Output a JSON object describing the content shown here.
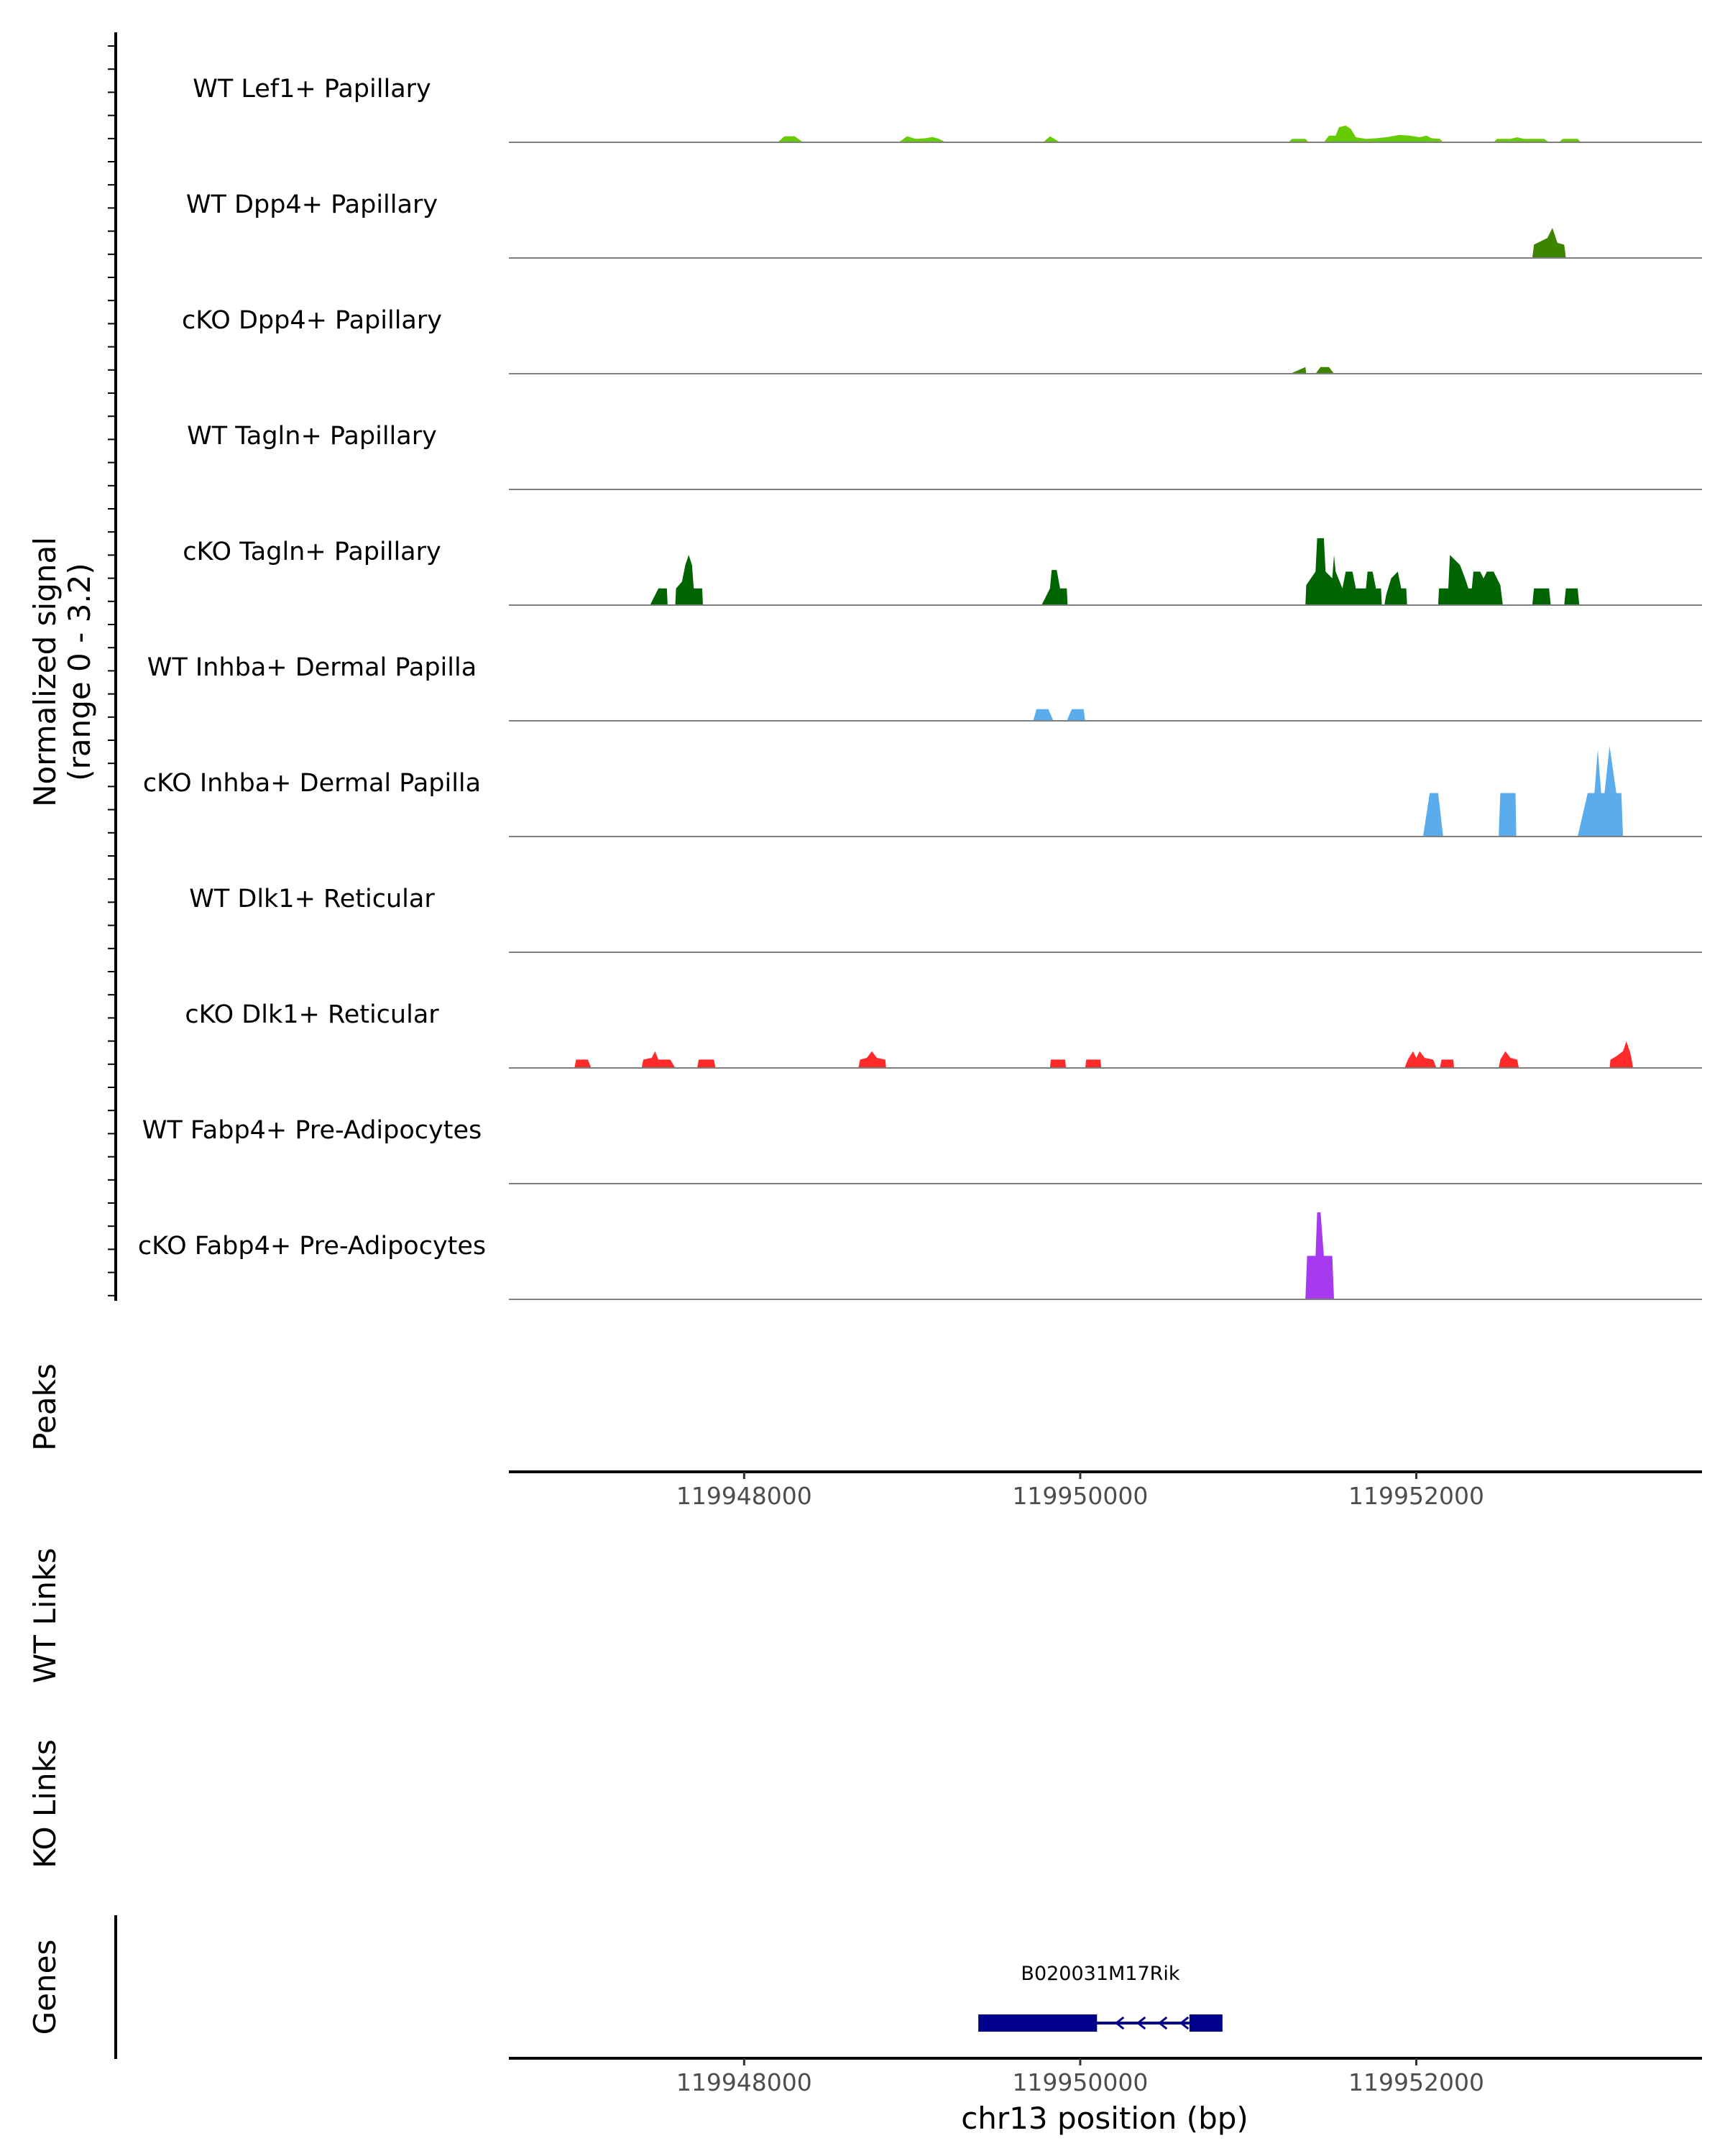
{
  "chart_data": {
    "type": "area",
    "title": "",
    "signal_axis_label": "Normalized signal",
    "signal_range_label": "(range 0 - 3.2)",
    "ylim": [
      0,
      3.2
    ],
    "xlim": [
      119946600,
      119953700
    ],
    "xlabel": "chr13 position (bp)",
    "x_ticks": [
      119948000,
      119950000,
      119952000
    ],
    "x_tick_labels": [
      "119948000",
      "119950000",
      "119952000"
    ],
    "tracks": [
      {
        "name": "WT Lef1+ Papillary",
        "color": "#66cc00",
        "points": [
          [
            119948200,
            0
          ],
          [
            119948240,
            0.18
          ],
          [
            119948300,
            0.18
          ],
          [
            119948350,
            0
          ],
          [
            119948920,
            0
          ],
          [
            119948970,
            0.18
          ],
          [
            119949020,
            0.1
          ],
          [
            119949080,
            0.12
          ],
          [
            119949120,
            0.16
          ],
          [
            119949160,
            0.1
          ],
          [
            119949200,
            0
          ],
          [
            119949780,
            0
          ],
          [
            119949820,
            0.18
          ],
          [
            119949880,
            0
          ],
          [
            119951240,
            0
          ],
          [
            119951260,
            0.1
          ],
          [
            119951340,
            0.1
          ],
          [
            119951360,
            0
          ],
          [
            119951450,
            0
          ],
          [
            119951480,
            0.2
          ],
          [
            119951520,
            0.2
          ],
          [
            119951540,
            0.45
          ],
          [
            119951580,
            0.5
          ],
          [
            119951610,
            0.4
          ],
          [
            119951640,
            0.15
          ],
          [
            119951700,
            0.1
          ],
          [
            119951760,
            0.12
          ],
          [
            119951820,
            0.15
          ],
          [
            119951900,
            0.22
          ],
          [
            119951960,
            0.2
          ],
          [
            119952020,
            0.15
          ],
          [
            119952060,
            0.2
          ],
          [
            119952090,
            0.12
          ],
          [
            119952140,
            0.1
          ],
          [
            119952160,
            0
          ],
          [
            119952460,
            0
          ],
          [
            119952480,
            0.1
          ],
          [
            119952560,
            0.1
          ],
          [
            119952600,
            0.15
          ],
          [
            119952640,
            0.1
          ],
          [
            119952660,
            0.1
          ],
          [
            119952700,
            0.1
          ],
          [
            119952760,
            0.1
          ],
          [
            119952790,
            0
          ],
          [
            119952850,
            0
          ],
          [
            119952870,
            0.1
          ],
          [
            119952960,
            0.1
          ],
          [
            119952980,
            0
          ]
        ]
      },
      {
        "name": "WT Dpp4+ Papillary",
        "color": "#3d8500",
        "points": [
          [
            119952690,
            0
          ],
          [
            119952700,
            0.4
          ],
          [
            119952780,
            0.6
          ],
          [
            119952810,
            0.9
          ],
          [
            119952840,
            0.45
          ],
          [
            119952880,
            0.4
          ],
          [
            119952890,
            0
          ]
        ]
      },
      {
        "name": "cKO Dpp4+ Papillary",
        "color": "#3d8500",
        "points": [
          [
            119951250,
            0
          ],
          [
            119951340,
            0.2
          ],
          [
            119951345,
            0
          ],
          [
            119951400,
            0
          ],
          [
            119951430,
            0.2
          ],
          [
            119951480,
            0.2
          ],
          [
            119951510,
            0
          ]
        ]
      },
      {
        "name": "WT Tagln+ Papillary",
        "color": "#006400",
        "points": []
      },
      {
        "name": "cKO Tagln+ Papillary",
        "color": "#006400",
        "points": [
          [
            119947440,
            0
          ],
          [
            119947490,
            0.5
          ],
          [
            119947540,
            0.5
          ],
          [
            119947545,
            0
          ],
          [
            119947590,
            0
          ],
          [
            119947595,
            0.5
          ],
          [
            119947630,
            0.7
          ],
          [
            119947650,
            1.2
          ],
          [
            119947670,
            1.5
          ],
          [
            119947690,
            1.2
          ],
          [
            119947700,
            0.5
          ],
          [
            119947750,
            0.5
          ],
          [
            119947755,
            0
          ],
          [
            119949770,
            0
          ],
          [
            119949820,
            0.5
          ],
          [
            119949830,
            1.05
          ],
          [
            119949860,
            1.05
          ],
          [
            119949880,
            0.5
          ],
          [
            119949920,
            0.5
          ],
          [
            119949925,
            0
          ],
          [
            119951340,
            0
          ],
          [
            119951345,
            0.6
          ],
          [
            119951400,
            1.0
          ],
          [
            119951410,
            2.0
          ],
          [
            119951450,
            2.0
          ],
          [
            119951460,
            1.0
          ],
          [
            119951500,
            0.8
          ],
          [
            119951510,
            1.5
          ],
          [
            119951520,
            1.0
          ],
          [
            119951560,
            0.5
          ],
          [
            119951580,
            1.0
          ],
          [
            119951620,
            1.0
          ],
          [
            119951640,
            0.5
          ],
          [
            119951700,
            0.5
          ],
          [
            119951710,
            1.0
          ],
          [
            119951740,
            1.0
          ],
          [
            119951760,
            0.5
          ],
          [
            119951790,
            0.5
          ],
          [
            119951795,
            0
          ],
          [
            119951810,
            0
          ],
          [
            119951820,
            0.3
          ],
          [
            119951850,
            0.8
          ],
          [
            119951890,
            1.0
          ],
          [
            119951910,
            0.5
          ],
          [
            119951940,
            0.5
          ],
          [
            119951945,
            0
          ],
          [
            119952130,
            0
          ],
          [
            119952135,
            0.5
          ],
          [
            119952190,
            0.5
          ],
          [
            119952200,
            1.5
          ],
          [
            119952260,
            1.2
          ],
          [
            119952290,
            0.8
          ],
          [
            119952310,
            0.5
          ],
          [
            119952330,
            0.5
          ],
          [
            119952340,
            1.0
          ],
          [
            119952380,
            1.0
          ],
          [
            119952400,
            0.8
          ],
          [
            119952420,
            1.0
          ],
          [
            119952460,
            1.0
          ],
          [
            119952500,
            0.6
          ],
          [
            119952515,
            0
          ],
          [
            119952690,
            0
          ],
          [
            119952700,
            0.5
          ],
          [
            119952790,
            0.5
          ],
          [
            119952800,
            0
          ],
          [
            119952880,
            0
          ],
          [
            119952890,
            0.5
          ],
          [
            119952960,
            0.5
          ],
          [
            119952970,
            0
          ]
        ]
      },
      {
        "name": "WT Inhba+ Dermal Papilla",
        "color": "#5aacec",
        "points": [
          [
            119949720,
            0
          ],
          [
            119949740,
            0.35
          ],
          [
            119949810,
            0.35
          ],
          [
            119949840,
            0
          ],
          [
            119949920,
            0
          ],
          [
            119949950,
            0.35
          ],
          [
            119950020,
            0.35
          ],
          [
            119950030,
            0
          ]
        ]
      },
      {
        "name": "cKO Inhba+ Dermal Papilla",
        "color": "#5aacec",
        "points": [
          [
            119952040,
            0
          ],
          [
            119952080,
            1.3
          ],
          [
            119952130,
            1.3
          ],
          [
            119952160,
            0
          ],
          [
            119952490,
            0
          ],
          [
            119952500,
            1.3
          ],
          [
            119952590,
            1.3
          ],
          [
            119952595,
            0
          ],
          [
            119952960,
            0
          ],
          [
            119953020,
            1.3
          ],
          [
            119953060,
            1.3
          ],
          [
            119953080,
            2.6
          ],
          [
            119953100,
            1.3
          ],
          [
            119953120,
            1.3
          ],
          [
            119953150,
            2.7
          ],
          [
            119953190,
            1.3
          ],
          [
            119953220,
            1.3
          ],
          [
            119953230,
            0
          ]
        ]
      },
      {
        "name": "WT Dlk1+ Reticular",
        "color": "#ff2a2a",
        "points": []
      },
      {
        "name": "cKO Dlk1+ Reticular",
        "color": "#ff2a2a",
        "points": [
          [
            119946990,
            0
          ],
          [
            119947000,
            0.25
          ],
          [
            119947070,
            0.25
          ],
          [
            119947090,
            0
          ],
          [
            119947390,
            0
          ],
          [
            119947400,
            0.25
          ],
          [
            119947450,
            0.3
          ],
          [
            119947470,
            0.5
          ],
          [
            119947490,
            0.25
          ],
          [
            119947560,
            0.25
          ],
          [
            119947590,
            0
          ],
          [
            119947720,
            0
          ],
          [
            119947730,
            0.25
          ],
          [
            119947820,
            0.25
          ],
          [
            119947830,
            0
          ],
          [
            119948680,
            0
          ],
          [
            119948690,
            0.25
          ],
          [
            119948730,
            0.3
          ],
          [
            119948760,
            0.5
          ],
          [
            119948790,
            0.3
          ],
          [
            119948840,
            0.25
          ],
          [
            119948845,
            0
          ],
          [
            119949820,
            0
          ],
          [
            119949825,
            0.25
          ],
          [
            119949910,
            0.25
          ],
          [
            119949915,
            0
          ],
          [
            119950030,
            0
          ],
          [
            119950035,
            0.25
          ],
          [
            119950120,
            0.25
          ],
          [
            119950125,
            0
          ],
          [
            119951930,
            0
          ],
          [
            119951950,
            0.25
          ],
          [
            119951980,
            0.5
          ],
          [
            119952000,
            0.3
          ],
          [
            119952020,
            0.5
          ],
          [
            119952050,
            0.3
          ],
          [
            119952100,
            0.25
          ],
          [
            119952120,
            0
          ],
          [
            119952140,
            0
          ],
          [
            119952150,
            0.25
          ],
          [
            119952220,
            0.25
          ],
          [
            119952225,
            0
          ],
          [
            119952490,
            0
          ],
          [
            119952500,
            0.25
          ],
          [
            119952530,
            0.5
          ],
          [
            119952560,
            0.3
          ],
          [
            119952600,
            0.25
          ],
          [
            119952610,
            0
          ],
          [
            119953150,
            0
          ],
          [
            119953155,
            0.25
          ],
          [
            119953190,
            0.35
          ],
          [
            119953230,
            0.5
          ],
          [
            119953250,
            0.8
          ],
          [
            119953270,
            0.5
          ],
          [
            119953280,
            0.3
          ],
          [
            119953290,
            0
          ]
        ]
      },
      {
        "name": "WT Fabp4+ Pre-Adipocytes",
        "color": "#a63aee",
        "points": []
      },
      {
        "name": "cKO Fabp4+ Pre-Adipocytes",
        "color": "#a63aee",
        "points": [
          [
            119951340,
            0
          ],
          [
            119951350,
            1.3
          ],
          [
            119951400,
            1.3
          ],
          [
            119951410,
            2.6
          ],
          [
            119951430,
            2.6
          ],
          [
            119951450,
            1.3
          ],
          [
            119951500,
            1.3
          ],
          [
            119951510,
            0
          ]
        ]
      }
    ],
    "panels": {
      "peaks": "Peaks",
      "wt_links": "WT Links",
      "ko_links": "KO Links",
      "genes": "Genes"
    },
    "gene": {
      "name": "B020031M17Rik",
      "start": 119949400,
      "end": 119950840,
      "strand": "-",
      "exons": [
        [
          119949400,
          119950100
        ],
        [
          119950650,
          119950840
        ]
      ],
      "color": "#00008b"
    }
  }
}
